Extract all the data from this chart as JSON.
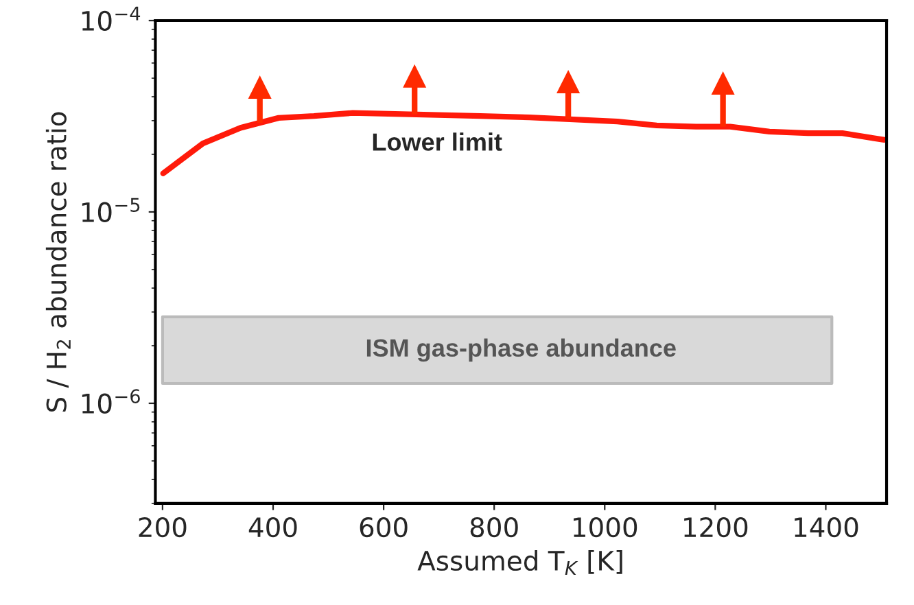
{
  "chart_data": {
    "type": "line",
    "xlabel": "Assumed T$_{K}$ [K]",
    "ylabel": "S / H$_{2}$ abundance ratio",
    "log": "y",
    "xlim": [
      187,
      1510
    ],
    "ylim": [
      3e-07,
      0.0001
    ],
    "xticks": [
      200,
      400,
      600,
      800,
      1000,
      1200,
      1400
    ],
    "yticks": [
      {
        "value": 1e-06,
        "label": "10$^{−6}$"
      },
      {
        "value": 1e-05,
        "label": "10$^{−5}$"
      },
      {
        "value": 0.0001,
        "label": "10$^{−4}$"
      }
    ],
    "grid": false,
    "legend": false,
    "marker": "none",
    "line_style": "solid",
    "series": [
      {
        "color": "#ff1a0a",
        "x": [
          201,
          273,
          341,
          410,
          474,
          544,
          775,
          864,
          1023,
          1094,
          1165,
          1227,
          1298,
          1368,
          1430,
          1506
        ],
        "values": [
          1.59e-05,
          2.28e-05,
          2.75e-05,
          3.1e-05,
          3.17e-05,
          3.29e-05,
          3.17e-05,
          3.12e-05,
          2.97e-05,
          2.83e-05,
          2.79e-05,
          2.79e-05,
          2.63e-05,
          2.58e-05,
          2.58e-05,
          2.38e-05
        ]
      },
      {
        "type": "scatter",
        "color": "#ff2a00",
        "x": [
          376,
          656,
          934,
          1214
        ],
        "values": [
          4.49e-05,
          5.13e-05,
          4.8e-05,
          4.72e-05
        ],
        "marker": "triangle"
      }
    ],
    "bands": [
      {
        "axis": "y",
        "from": 1.27e-06,
        "to": 2.83e-06,
        "label": "ISM gas-phase abundance",
        "color": "#d9d9d9"
      }
    ],
    "annotations": [
      "Lower limit"
    ]
  }
}
